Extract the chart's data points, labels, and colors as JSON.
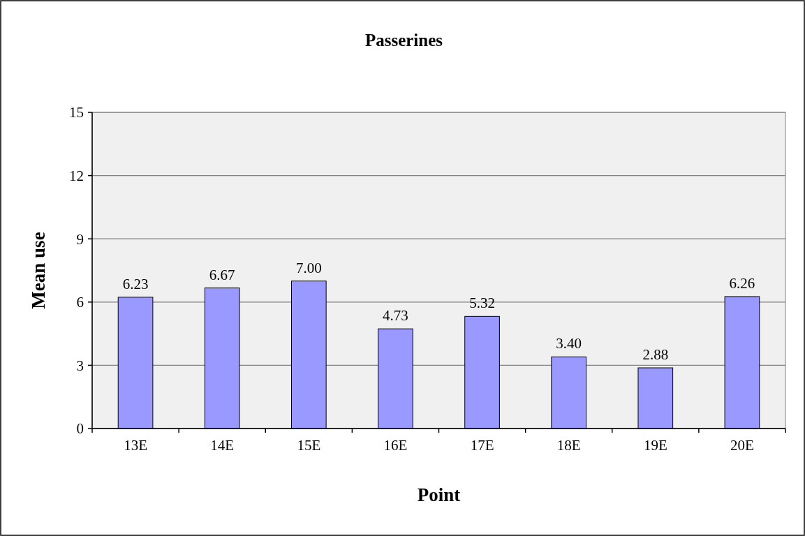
{
  "chart_data": {
    "type": "bar",
    "title": "Passerines",
    "xlabel": "Point",
    "ylabel": "Mean use",
    "categories": [
      "13E",
      "14E",
      "15E",
      "16E",
      "17E",
      "18E",
      "19E",
      "20E"
    ],
    "values": [
      6.23,
      6.67,
      7.0,
      4.73,
      5.32,
      3.4,
      2.88,
      6.26
    ],
    "value_labels": [
      "6.23",
      "6.67",
      "7.00",
      "4.73",
      "5.32",
      "3.40",
      "2.88",
      "6.26"
    ],
    "color": "#9999ff",
    "ylim": [
      0,
      15
    ],
    "yticks": [
      0,
      3,
      6,
      9,
      12,
      15
    ],
    "grid": "y"
  }
}
